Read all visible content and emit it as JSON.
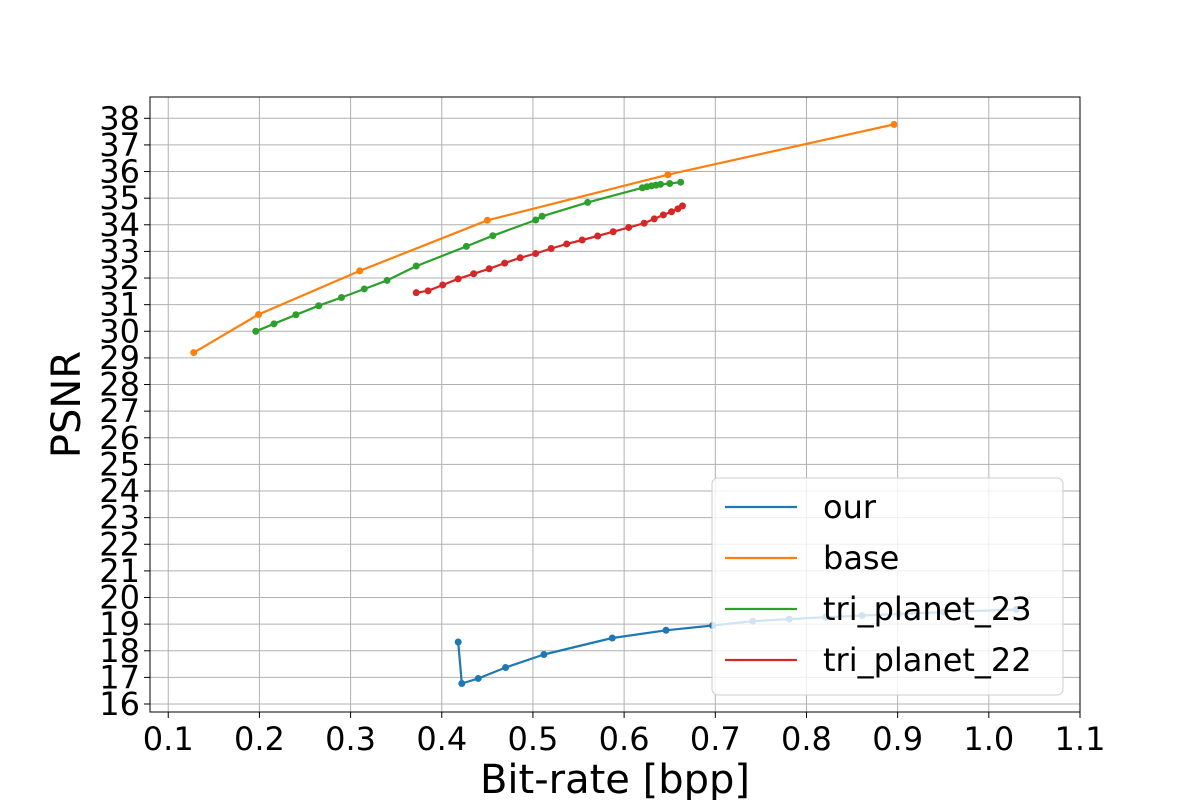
{
  "chart_data": {
    "type": "line",
    "title": "",
    "xlabel": "Bit-rate [bpp]",
    "ylabel": "PSNR",
    "xlim": [
      0.08,
      1.1
    ],
    "ylim": [
      15.7,
      38.8
    ],
    "xticks": [
      0.1,
      0.2,
      0.3,
      0.4,
      0.5,
      0.6,
      0.7,
      0.8,
      0.9,
      1.0,
      1.1
    ],
    "xtick_labels": [
      "0.1",
      "0.2",
      "0.3",
      "0.4",
      "0.5",
      "0.6",
      "0.7",
      "0.8",
      "0.9",
      "1.0",
      "1.1"
    ],
    "yticks": [
      16,
      17,
      18,
      19,
      20,
      21,
      22,
      23,
      24,
      25,
      26,
      27,
      28,
      29,
      30,
      31,
      32,
      33,
      34,
      35,
      36,
      37,
      38
    ],
    "ytick_labels": [
      "16",
      "17",
      "18",
      "19",
      "20",
      "21",
      "22",
      "23",
      "24",
      "25",
      "26",
      "27",
      "28",
      "29",
      "30",
      "31",
      "32",
      "33",
      "34",
      "35",
      "36",
      "37",
      "38"
    ],
    "grid": true,
    "legend_position": "lower-right",
    "series": [
      {
        "name": "our",
        "color": "#1f77b4",
        "x": [
          0.418,
          0.422,
          0.44,
          0.47,
          0.512,
          0.587,
          0.646,
          0.697,
          0.741,
          0.781,
          0.821,
          0.861,
          0.901,
          0.95,
          1.03
        ],
        "y": [
          18.33,
          16.77,
          16.96,
          17.37,
          17.86,
          18.48,
          18.77,
          18.95,
          19.11,
          19.19,
          19.26,
          19.32,
          19.38,
          19.45,
          19.55
        ]
      },
      {
        "name": "base",
        "color": "#ff7f0e",
        "x": [
          0.128,
          0.199,
          0.31,
          0.45,
          0.648,
          0.896
        ],
        "y": [
          29.2,
          30.63,
          32.27,
          34.17,
          35.88,
          37.77
        ]
      },
      {
        "name": "tri_planet_23",
        "color": "#2ca02c",
        "x": [
          0.196,
          0.216,
          0.24,
          0.265,
          0.29,
          0.315,
          0.34,
          0.372,
          0.427,
          0.456,
          0.503,
          0.51,
          0.56,
          0.62,
          0.625,
          0.63,
          0.635,
          0.64,
          0.65,
          0.662
        ],
        "y": [
          30.0,
          30.28,
          30.62,
          30.96,
          31.27,
          31.59,
          31.91,
          32.45,
          33.19,
          33.59,
          34.18,
          34.32,
          34.84,
          35.39,
          35.43,
          35.46,
          35.49,
          35.52,
          35.55,
          35.6
        ]
      },
      {
        "name": "tri_planet_22",
        "color": "#d62728",
        "x": [
          0.372,
          0.385,
          0.401,
          0.418,
          0.435,
          0.452,
          0.469,
          0.486,
          0.503,
          0.52,
          0.537,
          0.554,
          0.571,
          0.588,
          0.605,
          0.622,
          0.633,
          0.643,
          0.652,
          0.659,
          0.664
        ],
        "y": [
          31.45,
          31.52,
          31.74,
          31.97,
          32.16,
          32.35,
          32.56,
          32.76,
          32.92,
          33.11,
          33.28,
          33.43,
          33.58,
          33.74,
          33.9,
          34.06,
          34.22,
          34.37,
          34.49,
          34.6,
          34.71
        ]
      }
    ]
  }
}
